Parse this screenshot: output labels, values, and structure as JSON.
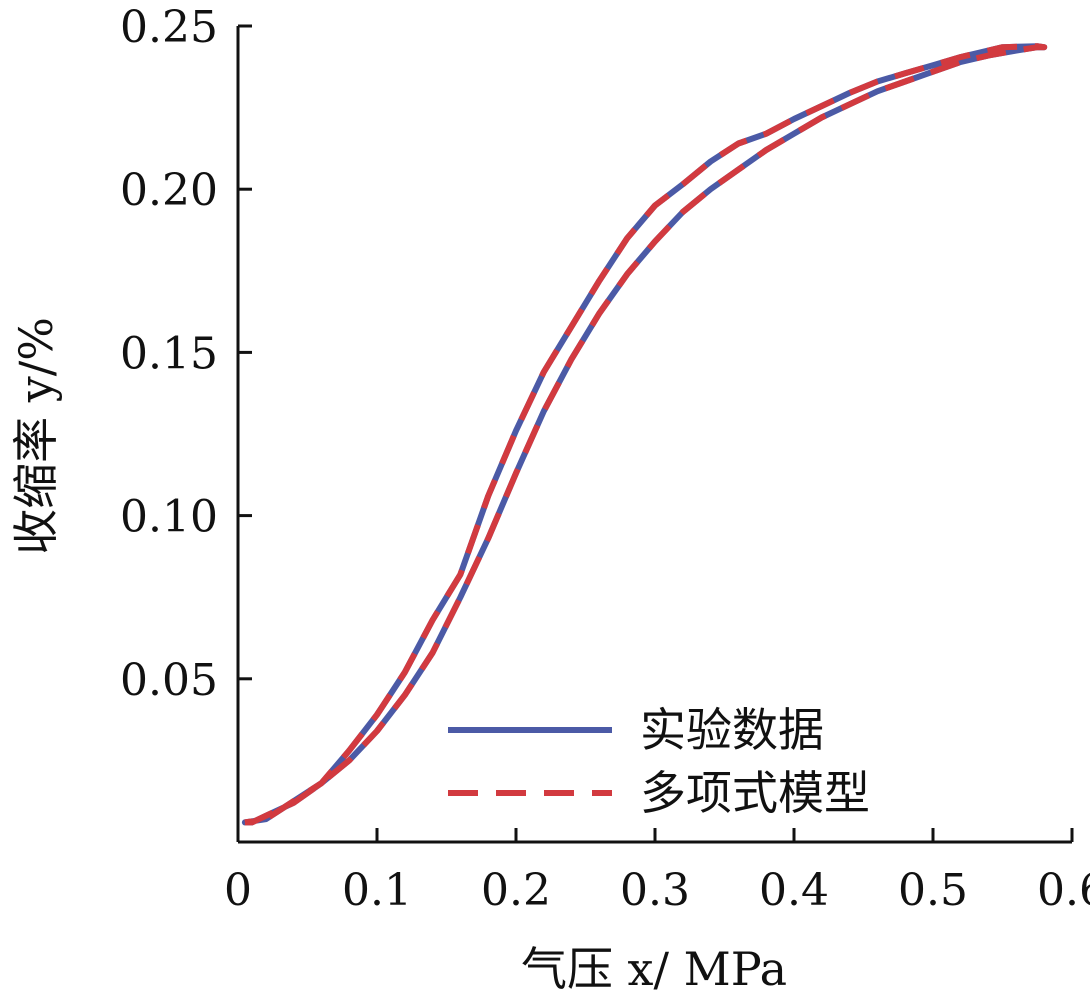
{
  "chart_data": {
    "type": "line",
    "xlabel": "气压 x/ MPa",
    "ylabel": "收缩率 y/%",
    "xlim": [
      0,
      0.6
    ],
    "ylim": [
      0,
      0.25
    ],
    "x_ticks": [
      0,
      0.1,
      0.2,
      0.3,
      0.4,
      0.5,
      0.6
    ],
    "x_tick_labels": [
      "0",
      "0.1",
      "0.2",
      "0.3",
      "0.4",
      "0.5",
      "0.6"
    ],
    "y_ticks": [
      0.05,
      0.1,
      0.15,
      0.2,
      0.25
    ],
    "y_tick_labels": [
      "0.05",
      "0.10",
      "0.15",
      "0.20",
      "0.25"
    ],
    "grid": false,
    "legend_position": "bottom-right",
    "series": [
      {
        "name": "实验数据",
        "color": "#4b5aa6",
        "style": "solid",
        "x": [
          0.005,
          0.01,
          0.02,
          0.04,
          0.06,
          0.08,
          0.1,
          0.12,
          0.14,
          0.16,
          0.18,
          0.2,
          0.22,
          0.24,
          0.26,
          0.28,
          0.3,
          0.32,
          0.34,
          0.36,
          0.38,
          0.4,
          0.42,
          0.44,
          0.46,
          0.48,
          0.5,
          0.52,
          0.54,
          0.56,
          0.575,
          0.58,
          0.575,
          0.55,
          0.52,
          0.5,
          0.48,
          0.46,
          0.44,
          0.42,
          0.4,
          0.38,
          0.36,
          0.34,
          0.32,
          0.3,
          0.28,
          0.26,
          0.24,
          0.22,
          0.2,
          0.18,
          0.16,
          0.14,
          0.12,
          0.1,
          0.08,
          0.06,
          0.04,
          0.02,
          0.005
        ],
        "y": [
          0.006,
          0.006,
          0.008,
          0.012,
          0.018,
          0.025,
          0.034,
          0.045,
          0.058,
          0.075,
          0.093,
          0.113,
          0.132,
          0.148,
          0.162,
          0.174,
          0.184,
          0.193,
          0.2,
          0.206,
          0.212,
          0.217,
          0.222,
          0.226,
          0.23,
          0.233,
          0.236,
          0.239,
          0.241,
          0.2425,
          0.2435,
          0.2435,
          0.2438,
          0.2435,
          0.2405,
          0.238,
          0.2355,
          0.233,
          0.2295,
          0.2255,
          0.2215,
          0.217,
          0.214,
          0.2085,
          0.2015,
          0.195,
          0.185,
          0.172,
          0.158,
          0.144,
          0.126,
          0.106,
          0.082,
          0.068,
          0.052,
          0.039,
          0.028,
          0.018,
          0.0125,
          0.007,
          0.006
        ]
      },
      {
        "name": "多项式模型",
        "color": "#d23a3f",
        "style": "dashed",
        "x": [
          0.005,
          0.01,
          0.02,
          0.04,
          0.06,
          0.08,
          0.1,
          0.12,
          0.14,
          0.16,
          0.18,
          0.2,
          0.22,
          0.24,
          0.26,
          0.28,
          0.3,
          0.32,
          0.34,
          0.36,
          0.38,
          0.4,
          0.42,
          0.44,
          0.46,
          0.48,
          0.5,
          0.52,
          0.54,
          0.56,
          0.575,
          0.58,
          0.575,
          0.55,
          0.52,
          0.5,
          0.48,
          0.46,
          0.44,
          0.42,
          0.4,
          0.38,
          0.36,
          0.34,
          0.32,
          0.3,
          0.28,
          0.26,
          0.24,
          0.22,
          0.2,
          0.18,
          0.16,
          0.14,
          0.12,
          0.1,
          0.08,
          0.06,
          0.04,
          0.02,
          0.005
        ],
        "y": [
          0.006,
          0.006,
          0.008,
          0.012,
          0.018,
          0.025,
          0.034,
          0.045,
          0.058,
          0.075,
          0.093,
          0.113,
          0.132,
          0.148,
          0.162,
          0.174,
          0.184,
          0.193,
          0.2,
          0.206,
          0.212,
          0.217,
          0.222,
          0.226,
          0.23,
          0.233,
          0.236,
          0.239,
          0.241,
          0.2425,
          0.2435,
          0.2435,
          0.2438,
          0.2435,
          0.2405,
          0.238,
          0.2355,
          0.233,
          0.2295,
          0.2255,
          0.2215,
          0.217,
          0.214,
          0.2085,
          0.2015,
          0.195,
          0.185,
          0.172,
          0.158,
          0.144,
          0.126,
          0.106,
          0.082,
          0.068,
          0.052,
          0.039,
          0.028,
          0.018,
          0.0125,
          0.007,
          0.006
        ]
      }
    ]
  }
}
